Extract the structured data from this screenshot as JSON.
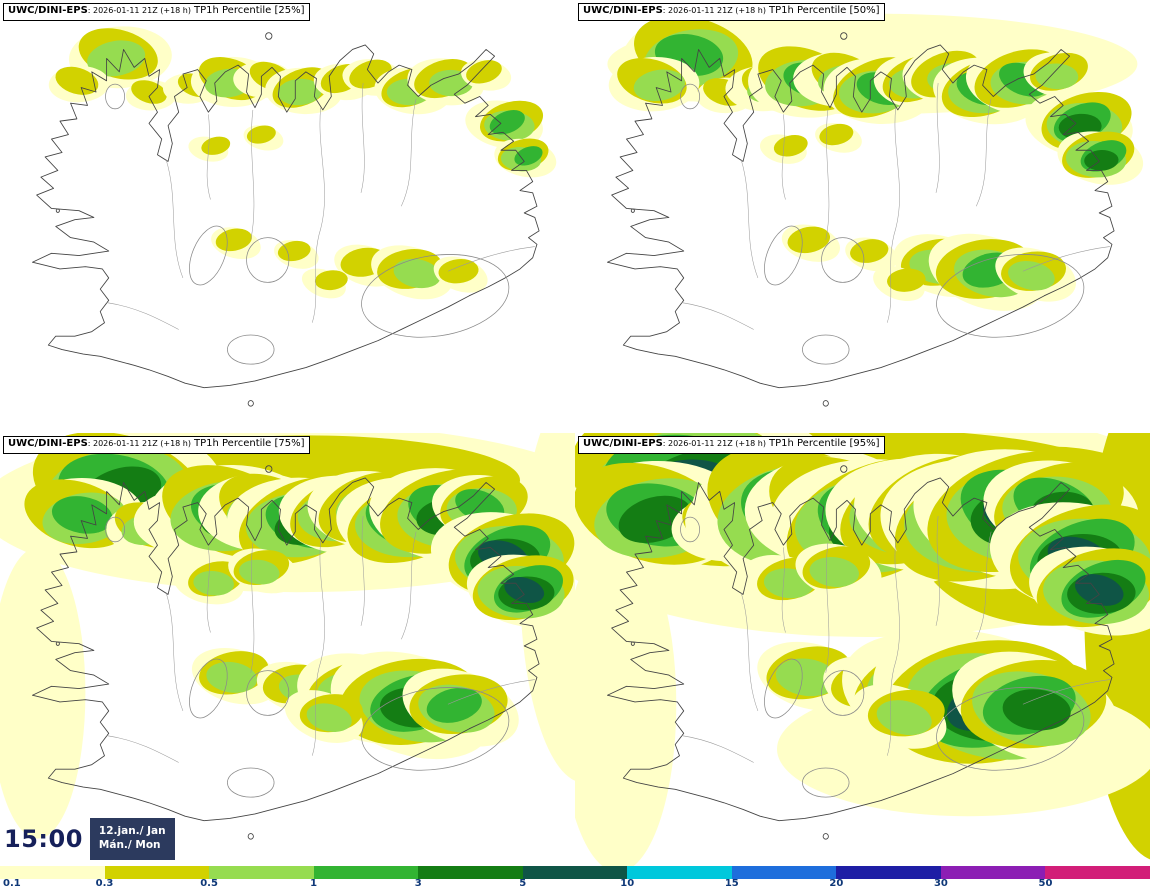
{
  "panels": [
    {
      "model": "UWC/DINI-EPS",
      "meta": ": 2026-01-11 21Z (+18 h)",
      "title": "TP1h Percentile [25%]"
    },
    {
      "model": "UWC/DINI-EPS",
      "meta": ": 2026-01-11 21Z (+18 h)",
      "title": "TP1h Percentile [50%]"
    },
    {
      "model": "UWC/DINI-EPS",
      "meta": ": 2026-01-11 21Z (+18 h)",
      "title": "TP1h Percentile [75%]"
    },
    {
      "model": "UWC/DINI-EPS",
      "meta": ": 2026-01-11 21Z (+18 h)",
      "title": "TP1h Percentile [95%]"
    }
  ],
  "time": {
    "clock": "15:00",
    "date": "12.jan./ Jan",
    "day": "Mán./ Mon"
  },
  "colorbar": {
    "labels": [
      "0.1",
      "0.3",
      "0.5",
      "1",
      "3",
      "5",
      "10",
      "15",
      "20",
      "30",
      "50"
    ],
    "colors": [
      "#ffffc8",
      "#d2d200",
      "#96dc50",
      "#32b432",
      "#147d14",
      "#0f5546",
      "#00c8dc",
      "#1e6edc",
      "#1e1ea5",
      "#8c1eb4",
      "#d21e78"
    ],
    "label_color": "#0f3878"
  },
  "accent": {
    "timebox_bg": "#2c3a5e",
    "clock_color": "#16205a"
  }
}
